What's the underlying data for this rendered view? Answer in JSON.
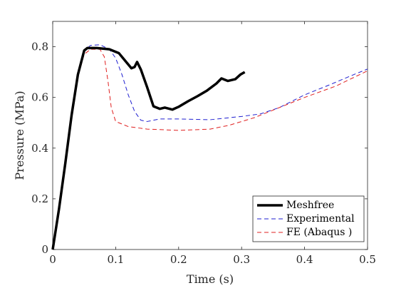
{
  "chart_data": {
    "type": "line",
    "xlabel": "Time (s)",
    "ylabel": "Pressure (MPa)",
    "xlim": [
      0,
      0.5
    ],
    "ylim": [
      0,
      0.9
    ],
    "x_ticks": [
      0,
      0.1,
      0.2,
      0.3,
      0.4,
      0.5
    ],
    "x_tick_labels": [
      "0",
      "0.1",
      "0.2",
      "0.3",
      "0.4",
      "0.5"
    ],
    "y_ticks": [
      0,
      0.2,
      0.4,
      0.6,
      0.8
    ],
    "y_tick_labels": [
      "0",
      "0.2",
      "0.4",
      "0.6",
      "0.8"
    ],
    "grid": false,
    "legend_position": "bottom-right",
    "series": [
      {
        "name": "Meshfree",
        "color": "#000000",
        "style": "solid-thick",
        "points": [
          [
            0,
            0
          ],
          [
            0.01,
            0.16
          ],
          [
            0.02,
            0.34
          ],
          [
            0.03,
            0.53
          ],
          [
            0.04,
            0.69
          ],
          [
            0.05,
            0.785
          ],
          [
            0.055,
            0.795
          ],
          [
            0.07,
            0.795
          ],
          [
            0.09,
            0.79
          ],
          [
            0.105,
            0.775
          ],
          [
            0.115,
            0.745
          ],
          [
            0.125,
            0.715
          ],
          [
            0.13,
            0.72
          ],
          [
            0.134,
            0.74
          ],
          [
            0.14,
            0.71
          ],
          [
            0.15,
            0.64
          ],
          [
            0.16,
            0.565
          ],
          [
            0.17,
            0.555
          ],
          [
            0.178,
            0.56
          ],
          [
            0.19,
            0.552
          ],
          [
            0.2,
            0.563
          ],
          [
            0.215,
            0.585
          ],
          [
            0.23,
            0.605
          ],
          [
            0.245,
            0.627
          ],
          [
            0.26,
            0.655
          ],
          [
            0.268,
            0.675
          ],
          [
            0.278,
            0.665
          ],
          [
            0.29,
            0.672
          ],
          [
            0.298,
            0.69
          ],
          [
            0.305,
            0.7
          ]
        ]
      },
      {
        "name": "Experimental",
        "color": "#1f1fd0",
        "style": "dashed",
        "points": [
          [
            0,
            0
          ],
          [
            0.01,
            0.15
          ],
          [
            0.02,
            0.33
          ],
          [
            0.03,
            0.52
          ],
          [
            0.04,
            0.69
          ],
          [
            0.05,
            0.785
          ],
          [
            0.06,
            0.805
          ],
          [
            0.075,
            0.808
          ],
          [
            0.09,
            0.79
          ],
          [
            0.1,
            0.755
          ],
          [
            0.11,
            0.69
          ],
          [
            0.12,
            0.61
          ],
          [
            0.13,
            0.545
          ],
          [
            0.14,
            0.51
          ],
          [
            0.15,
            0.505
          ],
          [
            0.17,
            0.515
          ],
          [
            0.2,
            0.515
          ],
          [
            0.25,
            0.512
          ],
          [
            0.3,
            0.525
          ],
          [
            0.33,
            0.535
          ],
          [
            0.36,
            0.56
          ],
          [
            0.4,
            0.61
          ],
          [
            0.44,
            0.65
          ],
          [
            0.48,
            0.692
          ],
          [
            0.5,
            0.712
          ]
        ]
      },
      {
        "name": "FE (Abaqus )",
        "color": "#e02020",
        "style": "dashed",
        "points": [
          [
            0,
            0
          ],
          [
            0.01,
            0.15
          ],
          [
            0.02,
            0.33
          ],
          [
            0.03,
            0.52
          ],
          [
            0.04,
            0.68
          ],
          [
            0.05,
            0.77
          ],
          [
            0.06,
            0.79
          ],
          [
            0.075,
            0.79
          ],
          [
            0.082,
            0.76
          ],
          [
            0.088,
            0.66
          ],
          [
            0.093,
            0.56
          ],
          [
            0.1,
            0.505
          ],
          [
            0.12,
            0.485
          ],
          [
            0.15,
            0.475
          ],
          [
            0.2,
            0.47
          ],
          [
            0.25,
            0.475
          ],
          [
            0.28,
            0.49
          ],
          [
            0.32,
            0.52
          ],
          [
            0.36,
            0.56
          ],
          [
            0.4,
            0.6
          ],
          [
            0.45,
            0.645
          ],
          [
            0.5,
            0.705
          ]
        ]
      }
    ]
  }
}
